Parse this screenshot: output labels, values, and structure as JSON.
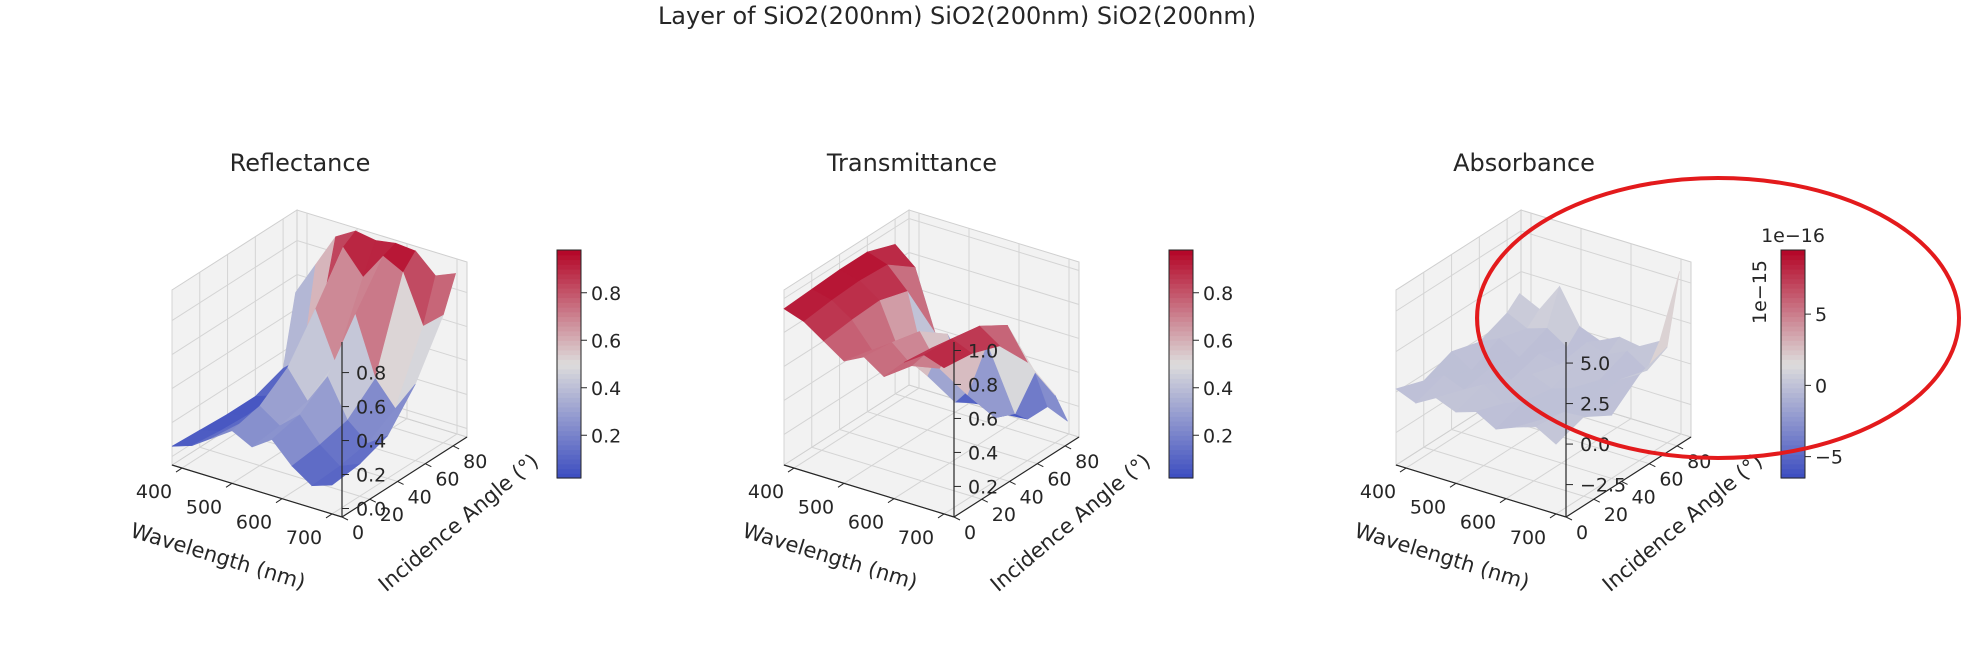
{
  "figure": {
    "suptitle": "Layer of SiO2(200nm) SiO2(200nm) SiO2(200nm)"
  },
  "colors": {
    "colormap": "coolwarm",
    "low": "#3b4cc0",
    "mid": "#dddcdc",
    "high": "#b40426",
    "pane": "#f2f2f2",
    "grid": "#d4d4d4",
    "annotation": "#e31a1c"
  },
  "annotation": {
    "shape": "ellipse",
    "color": "#e31a1c",
    "target": "Absorbance z-axis and colorbar"
  },
  "chart_data": [
    {
      "type": "surface",
      "title": "Reflectance",
      "xlabel": "Wavelength (nm)",
      "ylabel": "Incidence Angle (°)",
      "zlabel": "",
      "x_ticks": [
        "400",
        "500",
        "600",
        "700"
      ],
      "y_ticks": [
        "0",
        "20",
        "40",
        "60",
        "80"
      ],
      "z_ticks": [
        "0.0",
        "0.2",
        "0.4",
        "0.6",
        "0.8"
      ],
      "xlim": [
        380,
        720
      ],
      "ylim": [
        0,
        90
      ],
      "zlim": [
        -0.05,
        0.98
      ],
      "zticks": [
        0.0,
        0.2,
        0.4,
        0.6,
        0.8
      ],
      "colorbar": {
        "ticks": [
          "0.2",
          "0.4",
          "0.6",
          "0.8"
        ],
        "values": [
          0.2,
          0.4,
          0.6,
          0.8
        ],
        "range": [
          0.02,
          0.98
        ],
        "offset": ""
      },
      "wavelength_nm": [
        380,
        420,
        460,
        500,
        540,
        580,
        620,
        660,
        700
      ],
      "angle_deg": [
        0,
        20,
        40,
        60,
        80,
        89
      ],
      "z_grid": [
        [
          0.06,
          0.1,
          0.18,
          0.26,
          0.2,
          0.28,
          0.16,
          0.08,
          0.12
        ],
        [
          0.05,
          0.08,
          0.16,
          0.3,
          0.22,
          0.32,
          0.18,
          0.09,
          0.14
        ],
        [
          0.04,
          0.07,
          0.15,
          0.42,
          0.26,
          0.44,
          0.22,
          0.12,
          0.2
        ],
        [
          0.04,
          0.08,
          0.2,
          0.66,
          0.38,
          0.7,
          0.36,
          0.22,
          0.4
        ],
        [
          0.1,
          0.2,
          0.55,
          0.92,
          0.78,
          0.94,
          0.88,
          0.6,
          0.7
        ],
        [
          0.5,
          0.7,
          0.9,
          0.97,
          0.95,
          0.97,
          0.96,
          0.85,
          0.9
        ]
      ]
    },
    {
      "type": "surface",
      "title": "Transmittance",
      "xlabel": "Wavelength (nm)",
      "ylabel": "Incidence Angle (°)",
      "zlabel": "",
      "x_ticks": [
        "400",
        "500",
        "600",
        "700"
      ],
      "y_ticks": [
        "0",
        "20",
        "40",
        "60",
        "80"
      ],
      "z_ticks": [
        "0.2",
        "0.4",
        "0.6",
        "0.8",
        "1.0"
      ],
      "xlim": [
        380,
        720
      ],
      "ylim": [
        0,
        90
      ],
      "zlim": [
        0.02,
        1.05
      ],
      "zticks": [
        0.2,
        0.4,
        0.6,
        0.8,
        1.0
      ],
      "colorbar": {
        "ticks": [
          "0.2",
          "0.4",
          "0.6",
          "0.8"
        ],
        "values": [
          0.2,
          0.4,
          0.6,
          0.8
        ],
        "range": [
          0.02,
          0.98
        ],
        "offset": ""
      },
      "wavelength_nm": [
        380,
        420,
        460,
        500,
        540,
        580,
        620,
        660,
        700
      ],
      "angle_deg": [
        0,
        20,
        40,
        60,
        80,
        89
      ],
      "z_grid": [
        [
          0.94,
          0.9,
          0.82,
          0.74,
          0.8,
          0.72,
          0.84,
          0.92,
          0.88
        ],
        [
          0.95,
          0.92,
          0.84,
          0.7,
          0.78,
          0.68,
          0.82,
          0.91,
          0.86
        ],
        [
          0.96,
          0.93,
          0.85,
          0.58,
          0.74,
          0.56,
          0.78,
          0.88,
          0.8
        ],
        [
          0.96,
          0.92,
          0.8,
          0.34,
          0.62,
          0.3,
          0.64,
          0.78,
          0.6
        ],
        [
          0.9,
          0.8,
          0.45,
          0.08,
          0.22,
          0.06,
          0.12,
          0.4,
          0.3
        ],
        [
          0.5,
          0.3,
          0.1,
          0.03,
          0.05,
          0.03,
          0.04,
          0.15,
          0.1
        ]
      ]
    },
    {
      "type": "surface",
      "title": "Absorbance",
      "xlabel": "Wavelength (nm)",
      "ylabel": "Incidence Angle (°)",
      "zlabel": "",
      "z_offset": "1e−15",
      "x_ticks": [
        "400",
        "500",
        "600",
        "700"
      ],
      "y_ticks": [
        "0",
        "20",
        "40",
        "60",
        "80"
      ],
      "z_ticks": [
        "−2.5",
        "0.0",
        "2.5",
        "5.0"
      ],
      "xlim": [
        380,
        720
      ],
      "ylim": [
        0,
        90
      ],
      "zlim": [
        -4.5,
        6.3
      ],
      "zticks": [
        -2.5,
        0.0,
        2.5,
        5.0
      ],
      "colorbar": {
        "ticks": [
          "−5",
          "0",
          "5"
        ],
        "values": [
          -5,
          0,
          5
        ],
        "range": [
          -6.5,
          9.5
        ],
        "offset": "1e−16"
      },
      "wavelength_nm": [
        380,
        420,
        460,
        500,
        540,
        580,
        620,
        660,
        700
      ],
      "angle_deg": [
        0,
        20,
        40,
        60,
        80,
        89
      ],
      "z_grid": [
        [
          0.2,
          -0.3,
          0.4,
          -0.1,
          0.3,
          -0.4,
          0.1,
          0.5,
          -0.2
        ],
        [
          -0.4,
          0.3,
          -0.2,
          0.5,
          -0.3,
          0.2,
          -0.5,
          0.3,
          0.4
        ],
        [
          0.3,
          -0.5,
          0.1,
          -0.3,
          0.4,
          -0.1,
          0.3,
          -0.2,
          -0.6
        ],
        [
          -0.2,
          0.4,
          -0.4,
          0.2,
          -0.1,
          0.5,
          -0.3,
          0.1,
          0.8
        ],
        [
          0.5,
          -0.1,
          0.3,
          -0.5,
          0.2,
          -0.2,
          0.4,
          -0.4,
          1.4
        ],
        [
          1.2,
          0.6,
          2.4,
          0.3,
          -0.2,
          0.4,
          0.2,
          0.9,
          5.6
        ]
      ]
    }
  ]
}
